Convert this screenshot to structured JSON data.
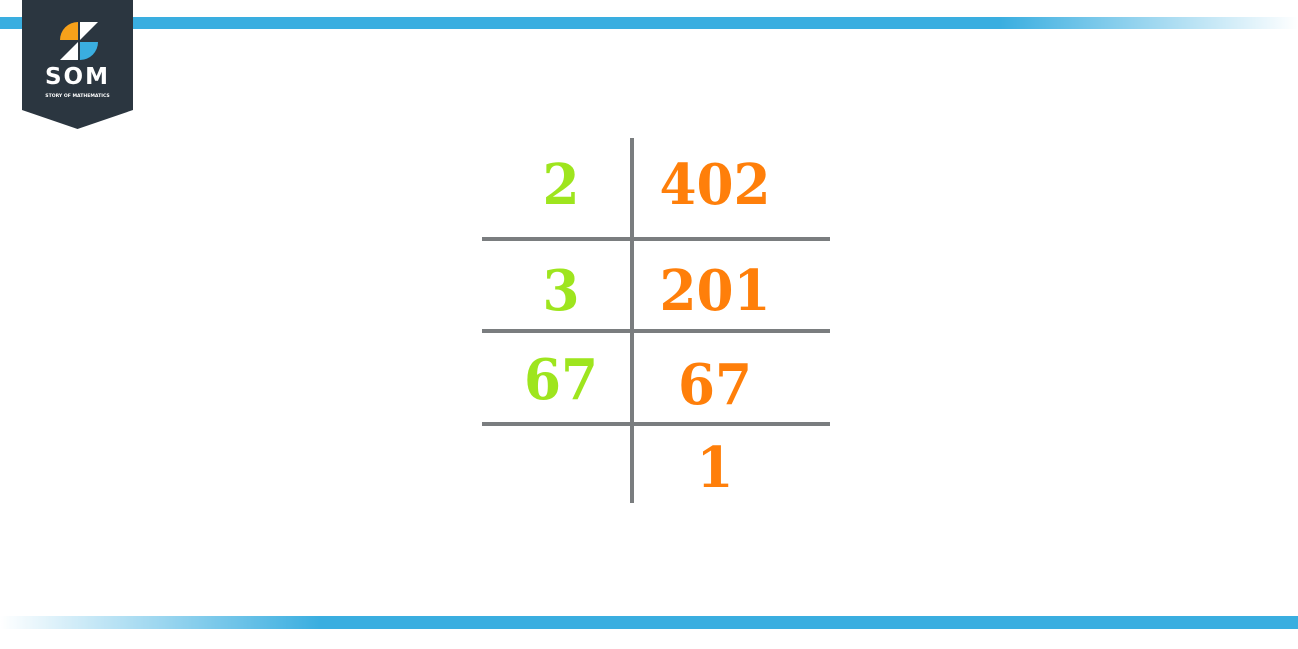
{
  "logo": {
    "title": "SOM",
    "subtitle": "STORY OF MATHEMATICS"
  },
  "colors": {
    "divisor": "#9ee51e",
    "dividend": "#ff7f0a",
    "lines": "#7a7d7f",
    "accent": "#3aaee0",
    "logo_bg": "#2b3640"
  },
  "rows": [
    {
      "divisor": "2",
      "value": "402"
    },
    {
      "divisor": "3",
      "value": "201"
    },
    {
      "divisor": "67",
      "value": "67"
    },
    {
      "divisor": "",
      "value": "1"
    }
  ]
}
